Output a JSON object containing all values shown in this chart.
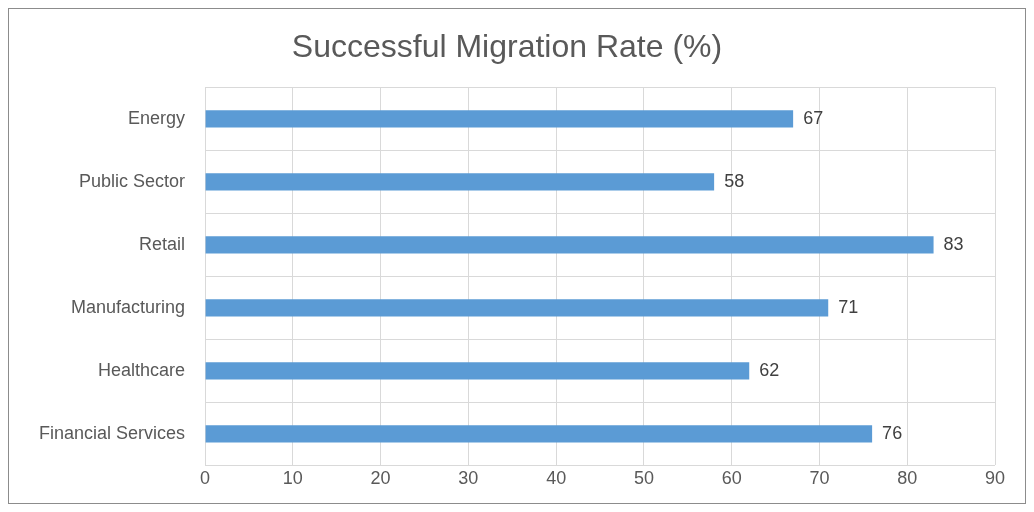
{
  "chart_data": {
    "type": "bar",
    "orientation": "horizontal",
    "title": "Successful Migration Rate (%)",
    "categories": [
      "Energy",
      "Public Sector",
      "Retail",
      "Manufacturing",
      "Healthcare",
      "Financial Services"
    ],
    "values": [
      67,
      58,
      83,
      71,
      62,
      76
    ],
    "color": "#5b9bd5",
    "xlim": [
      0,
      90
    ],
    "xticks": [
      0,
      10,
      20,
      30,
      40,
      50,
      60,
      70,
      80,
      90
    ],
    "grid": true,
    "legend": false,
    "data_labels": true
  }
}
